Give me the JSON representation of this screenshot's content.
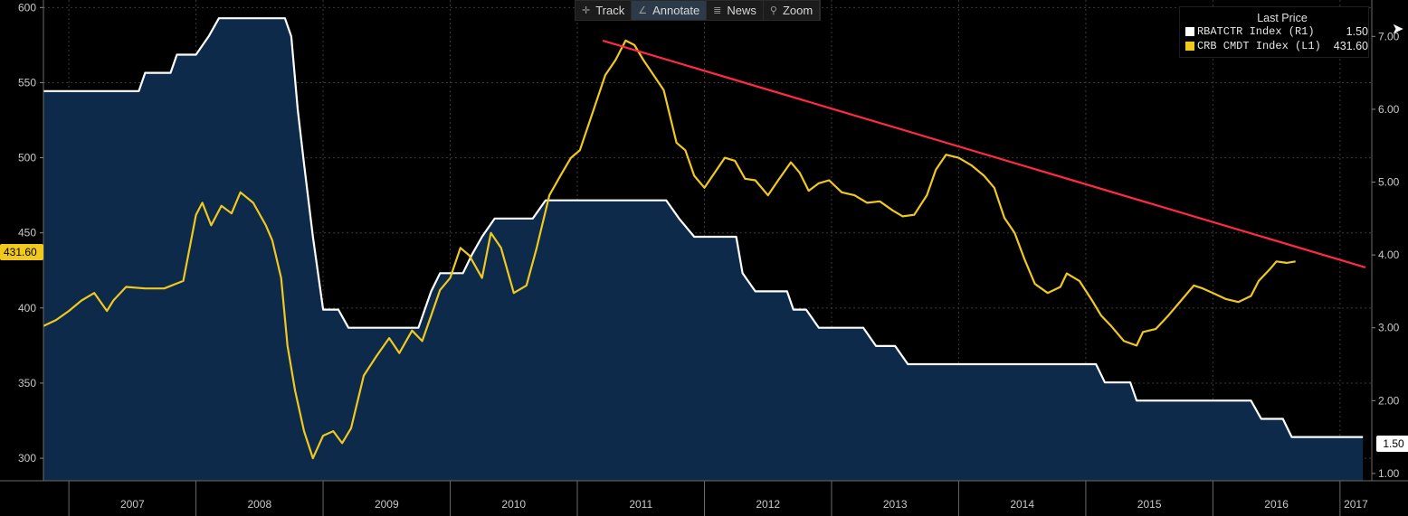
{
  "toolbar": {
    "items": [
      {
        "label": "Track",
        "icon": "crosshair-icon"
      },
      {
        "label": "Annotate",
        "icon": "pencil-icon"
      },
      {
        "label": "News",
        "icon": "list-icon"
      },
      {
        "label": "Zoom",
        "icon": "magnifier-icon"
      }
    ]
  },
  "legend": {
    "title": "Last Price",
    "series": [
      {
        "name": "RBATCTR Index  (R1)",
        "value": "1.50",
        "color": "#ffffff"
      },
      {
        "name": "CRB CMDT Index  (L1)",
        "value": "431.60",
        "color": "#f0c81e"
      }
    ]
  },
  "tags": {
    "left": "431.60",
    "right": "1.50"
  },
  "chart_data": {
    "type": "line",
    "background": "#000000",
    "area_fill": "#0d2a4a",
    "trendline_color": "#ff2a44",
    "grid": true,
    "x_tick_labels": [
      "2007",
      "2008",
      "2009",
      "2010",
      "2011",
      "2012",
      "2013",
      "2014",
      "2015",
      "2016",
      "2017"
    ],
    "y_left": {
      "range": [
        285,
        605
      ],
      "ticks": [
        300,
        350,
        400,
        450,
        500,
        550,
        600
      ]
    },
    "y_right": {
      "range": [
        0.9,
        7.5
      ],
      "ticks": [
        "1.00",
        "2.00",
        "3.00",
        "4.00",
        "5.00",
        "6.00",
        "7.00"
      ]
    },
    "series": [
      {
        "name": "RBATCTR Index  (R1)",
        "axis": "right",
        "color": "#ffffff",
        "step": true,
        "area": true,
        "points": [
          [
            2006.8,
            6.25
          ],
          [
            2007.55,
            6.25
          ],
          [
            2007.6,
            6.5
          ],
          [
            2007.8,
            6.5
          ],
          [
            2007.85,
            6.75
          ],
          [
            2008.0,
            6.75
          ],
          [
            2008.1,
            7.0
          ],
          [
            2008.18,
            7.25
          ],
          [
            2008.2,
            7.25
          ],
          [
            2008.7,
            7.25
          ],
          [
            2008.75,
            7.0
          ],
          [
            2008.8,
            6.0
          ],
          [
            2008.85,
            5.25
          ],
          [
            2008.92,
            4.25
          ],
          [
            2009.0,
            3.25
          ],
          [
            2009.12,
            3.25
          ],
          [
            2009.2,
            3.0
          ],
          [
            2009.75,
            3.0
          ],
          [
            2009.8,
            3.25
          ],
          [
            2009.85,
            3.5
          ],
          [
            2009.92,
            3.75
          ],
          [
            2010.1,
            3.75
          ],
          [
            2010.17,
            4.0
          ],
          [
            2010.25,
            4.25
          ],
          [
            2010.35,
            4.5
          ],
          [
            2010.65,
            4.5
          ],
          [
            2010.75,
            4.75
          ],
          [
            2011.7,
            4.75
          ],
          [
            2011.8,
            4.5
          ],
          [
            2011.92,
            4.25
          ],
          [
            2012.25,
            4.25
          ],
          [
            2012.3,
            3.75
          ],
          [
            2012.4,
            3.5
          ],
          [
            2012.65,
            3.5
          ],
          [
            2012.7,
            3.25
          ],
          [
            2012.8,
            3.25
          ],
          [
            2012.9,
            3.0
          ],
          [
            2013.25,
            3.0
          ],
          [
            2013.35,
            2.75
          ],
          [
            2013.5,
            2.75
          ],
          [
            2013.6,
            2.5
          ],
          [
            2015.08,
            2.5
          ],
          [
            2015.15,
            2.25
          ],
          [
            2015.35,
            2.25
          ],
          [
            2015.4,
            2.0
          ],
          [
            2016.3,
            2.0
          ],
          [
            2016.38,
            1.75
          ],
          [
            2016.55,
            1.75
          ],
          [
            2016.62,
            1.5
          ],
          [
            2017.18,
            1.5
          ]
        ]
      },
      {
        "name": "CRB CMDT Index  (L1)",
        "axis": "left",
        "color": "#f0c81e",
        "step": false,
        "area": false,
        "points": [
          [
            2006.8,
            388
          ],
          [
            2006.9,
            392
          ],
          [
            2007.0,
            398
          ],
          [
            2007.1,
            405
          ],
          [
            2007.2,
            410
          ],
          [
            2007.3,
            398
          ],
          [
            2007.35,
            405
          ],
          [
            2007.45,
            414
          ],
          [
            2007.6,
            413
          ],
          [
            2007.75,
            413
          ],
          [
            2007.9,
            418
          ],
          [
            2007.95,
            440
          ],
          [
            2008.0,
            462
          ],
          [
            2008.05,
            470
          ],
          [
            2008.12,
            455
          ],
          [
            2008.2,
            468
          ],
          [
            2008.28,
            463
          ],
          [
            2008.35,
            477
          ],
          [
            2008.45,
            470
          ],
          [
            2008.55,
            455
          ],
          [
            2008.6,
            445
          ],
          [
            2008.67,
            420
          ],
          [
            2008.72,
            375
          ],
          [
            2008.78,
            345
          ],
          [
            2008.85,
            318
          ],
          [
            2008.92,
            300
          ],
          [
            2009.0,
            315
          ],
          [
            2009.08,
            318
          ],
          [
            2009.15,
            310
          ],
          [
            2009.22,
            320
          ],
          [
            2009.32,
            355
          ],
          [
            2009.42,
            368
          ],
          [
            2009.52,
            380
          ],
          [
            2009.6,
            370
          ],
          [
            2009.7,
            385
          ],
          [
            2009.78,
            378
          ],
          [
            2009.85,
            395
          ],
          [
            2009.92,
            412
          ],
          [
            2010.0,
            420
          ],
          [
            2010.08,
            440
          ],
          [
            2010.15,
            435
          ],
          [
            2010.25,
            420
          ],
          [
            2010.32,
            450
          ],
          [
            2010.4,
            440
          ],
          [
            2010.5,
            410
          ],
          [
            2010.6,
            415
          ],
          [
            2010.68,
            440
          ],
          [
            2010.78,
            475
          ],
          [
            2010.88,
            490
          ],
          [
            2010.95,
            500
          ],
          [
            2011.02,
            505
          ],
          [
            2011.12,
            530
          ],
          [
            2011.22,
            555
          ],
          [
            2011.3,
            565
          ],
          [
            2011.38,
            578
          ],
          [
            2011.45,
            575
          ],
          [
            2011.52,
            565
          ],
          [
            2011.6,
            555
          ],
          [
            2011.68,
            545
          ],
          [
            2011.78,
            510
          ],
          [
            2011.85,
            505
          ],
          [
            2011.92,
            488
          ],
          [
            2012.0,
            480
          ],
          [
            2012.08,
            490
          ],
          [
            2012.16,
            500
          ],
          [
            2012.24,
            498
          ],
          [
            2012.32,
            486
          ],
          [
            2012.4,
            485
          ],
          [
            2012.5,
            475
          ],
          [
            2012.58,
            485
          ],
          [
            2012.68,
            497
          ],
          [
            2012.75,
            490
          ],
          [
            2012.82,
            478
          ],
          [
            2012.9,
            483
          ],
          [
            2012.98,
            485
          ],
          [
            2013.08,
            477
          ],
          [
            2013.18,
            475
          ],
          [
            2013.28,
            470
          ],
          [
            2013.38,
            471
          ],
          [
            2013.48,
            465
          ],
          [
            2013.56,
            461
          ],
          [
            2013.65,
            462
          ],
          [
            2013.75,
            475
          ],
          [
            2013.82,
            492
          ],
          [
            2013.9,
            502
          ],
          [
            2014.0,
            500
          ],
          [
            2014.1,
            495
          ],
          [
            2014.2,
            488
          ],
          [
            2014.28,
            480
          ],
          [
            2014.36,
            460
          ],
          [
            2014.44,
            450
          ],
          [
            2014.52,
            432
          ],
          [
            2014.6,
            416
          ],
          [
            2014.7,
            410
          ],
          [
            2014.8,
            414
          ],
          [
            2014.85,
            423
          ],
          [
            2014.95,
            418
          ],
          [
            2015.05,
            405
          ],
          [
            2015.12,
            395
          ],
          [
            2015.2,
            388
          ],
          [
            2015.3,
            378
          ],
          [
            2015.4,
            375
          ],
          [
            2015.45,
            384
          ],
          [
            2015.55,
            386
          ],
          [
            2015.65,
            395
          ],
          [
            2015.75,
            405
          ],
          [
            2015.85,
            415
          ],
          [
            2015.92,
            413
          ],
          [
            2016.0,
            410
          ],
          [
            2016.1,
            406
          ],
          [
            2016.2,
            404
          ],
          [
            2016.3,
            408
          ],
          [
            2016.36,
            418
          ],
          [
            2016.45,
            426
          ],
          [
            2016.5,
            431
          ],
          [
            2016.58,
            430
          ],
          [
            2016.65,
            431
          ]
        ]
      }
    ],
    "trendline": {
      "from": [
        2011.2,
        578
      ],
      "to": [
        2017.2,
        427
      ]
    }
  }
}
